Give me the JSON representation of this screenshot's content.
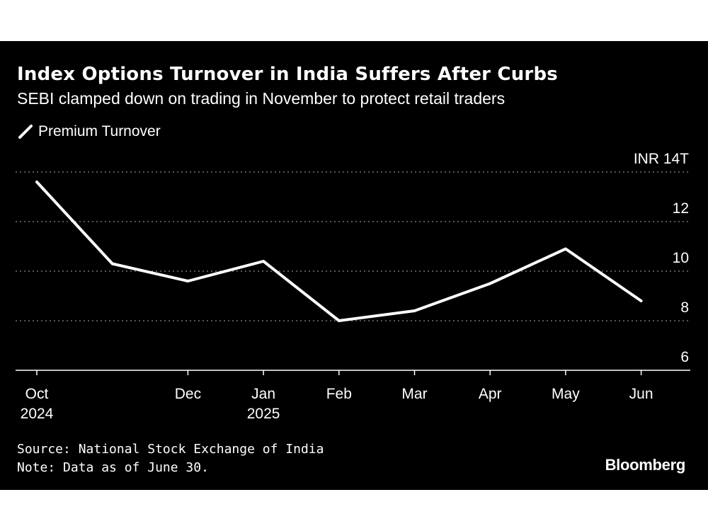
{
  "chart_data": {
    "type": "line",
    "title": "Index Options Turnover in India Suffers After Curbs",
    "subtitle": "SEBI clamped down on trading in November to protect retail traders",
    "series": [
      {
        "name": "Premium Turnover",
        "color": "#ffffff",
        "x": [
          "2024-10",
          "2024-11",
          "2024-12",
          "2025-01",
          "2025-02",
          "2025-03",
          "2025-04",
          "2025-05",
          "2025-06"
        ],
        "values": [
          13.6,
          10.3,
          9.6,
          10.4,
          8.0,
          8.4,
          9.5,
          10.9,
          8.8
        ]
      }
    ],
    "x_ticks": [
      {
        "at": "2024-10",
        "label": "Oct",
        "sublabel": "2024"
      },
      {
        "at": "2024-12",
        "label": "Dec",
        "sublabel": ""
      },
      {
        "at": "2025-01",
        "label": "Jan",
        "sublabel": "2025"
      },
      {
        "at": "2025-02",
        "label": "Feb",
        "sublabel": ""
      },
      {
        "at": "2025-03",
        "label": "Mar",
        "sublabel": ""
      },
      {
        "at": "2025-04",
        "label": "Apr",
        "sublabel": ""
      },
      {
        "at": "2025-05",
        "label": "May",
        "sublabel": ""
      },
      {
        "at": "2025-06",
        "label": "Jun",
        "sublabel": ""
      }
    ],
    "y_ticks": [
      {
        "value": 14,
        "label": "INR 14T"
      },
      {
        "value": 12,
        "label": "12"
      },
      {
        "value": 10,
        "label": "10"
      },
      {
        "value": 8,
        "label": "8"
      },
      {
        "value": 6,
        "label": "6"
      }
    ],
    "ylim": [
      6,
      14
    ],
    "y_axis_position": "right",
    "grid": "horizontal dotted",
    "legend_position": "top-left"
  },
  "footer": {
    "source": "Source: National Stock Exchange of India",
    "note": "Note: Data as of June 30.",
    "brand": "Bloomberg"
  }
}
